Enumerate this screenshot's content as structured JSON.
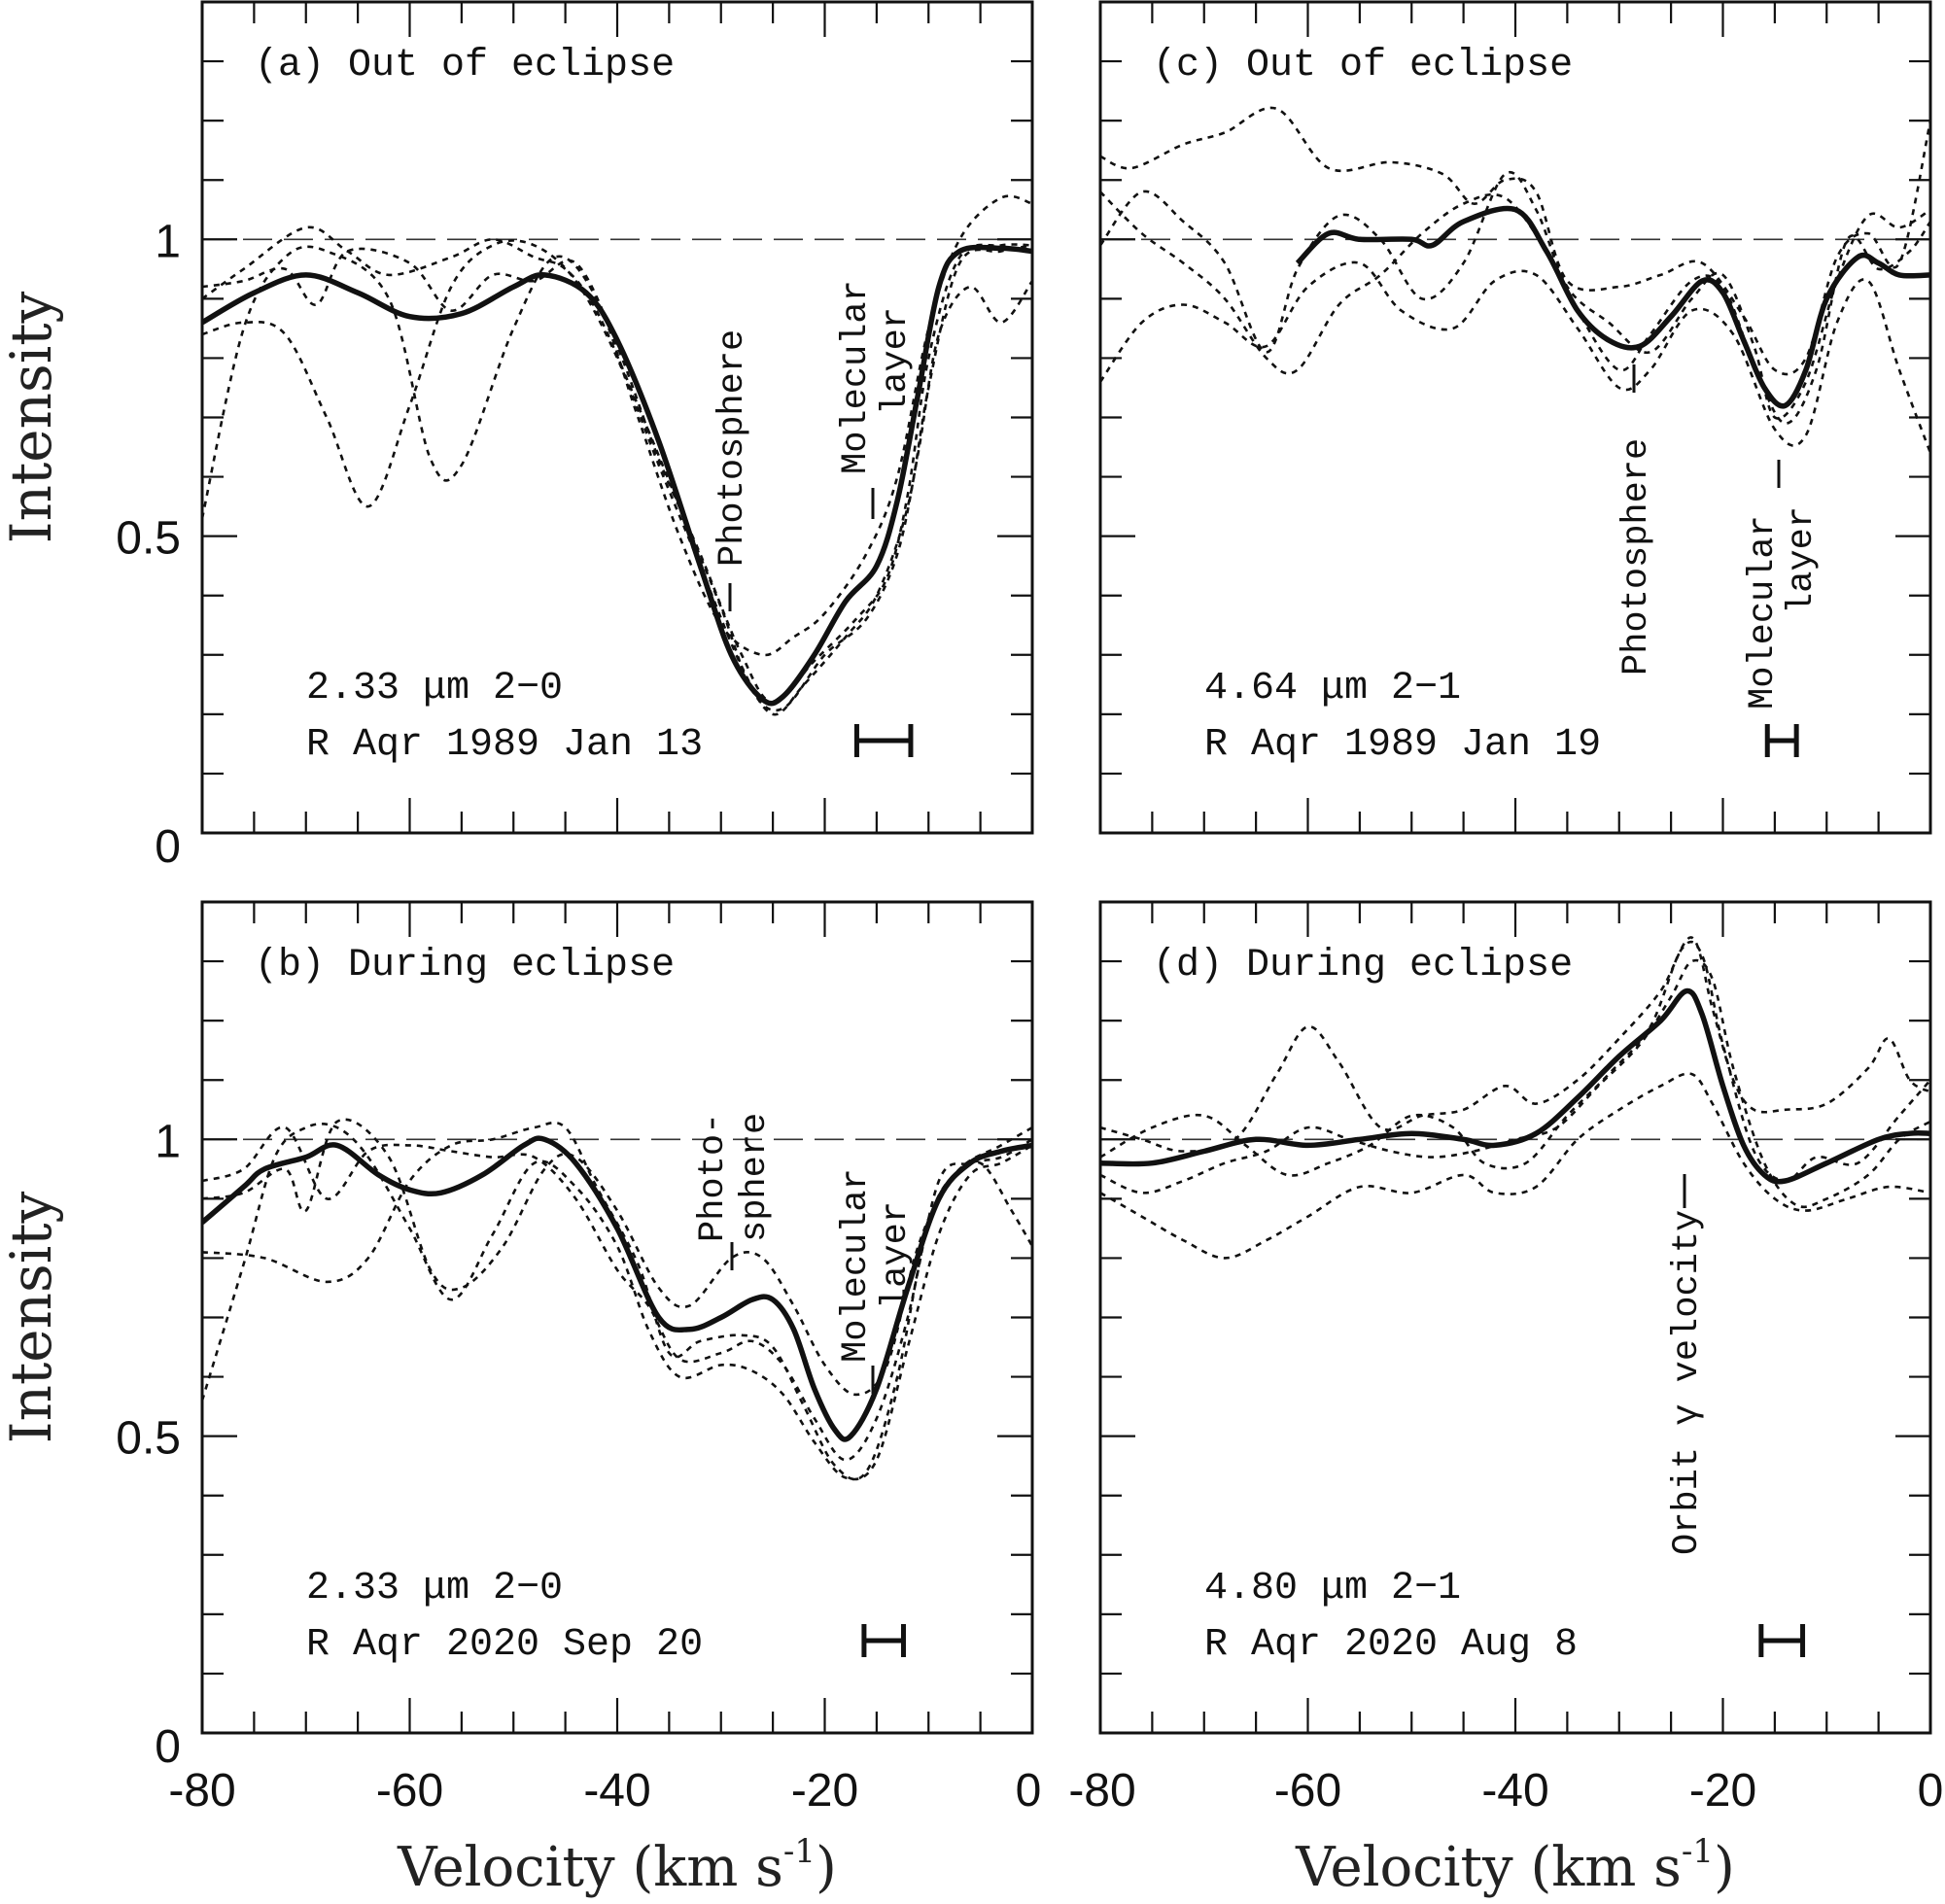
{
  "chart_data": [
    {
      "type": "line",
      "panel_label": "(a) Out of eclipse",
      "line_info": "2.33 μm 2−0",
      "observation": "R Aqr 1989 Jan 13",
      "annotations": [
        "Photosphere",
        "Molecular",
        "layer"
      ],
      "xlabel": "Velocity (km s⁻¹)",
      "ylabel": "Intensity",
      "xlim": [
        -80,
        0
      ],
      "ylim": [
        0,
        1.4
      ],
      "continuum_level": 1,
      "resolution_kms": 5.2,
      "mean_profile": {
        "x": [
          -80,
          -75,
          -70,
          -65,
          -60,
          -55,
          -50,
          -47,
          -43,
          -40,
          -36,
          -32,
          -29,
          -26,
          -24,
          -21,
          -18,
          -15,
          -13,
          -11,
          -9,
          -7,
          -3,
          0
        ],
        "y": [
          0.86,
          0.91,
          0.94,
          0.91,
          0.87,
          0.875,
          0.92,
          0.94,
          0.91,
          0.83,
          0.66,
          0.45,
          0.3,
          0.225,
          0.23,
          0.3,
          0.39,
          0.45,
          0.56,
          0.74,
          0.92,
          0.98,
          0.985,
          0.98
        ]
      },
      "individual_profiles": [
        {
          "x": [
            -80,
            -76,
            -72,
            -68,
            -62,
            -58,
            -55,
            -50,
            -46,
            -42,
            -38,
            -34,
            -30,
            -26,
            -23,
            -20,
            -16,
            -13,
            -10,
            -7,
            -3,
            0
          ],
          "y": [
            0.53,
            0.85,
            0.97,
            0.98,
            0.9,
            0.63,
            0.62,
            0.85,
            0.97,
            0.9,
            0.7,
            0.5,
            0.35,
            0.3,
            0.33,
            0.37,
            0.47,
            0.6,
            0.85,
            1.0,
            1.07,
            1.06
          ]
        },
        {
          "x": [
            -80,
            -76,
            -72,
            -68,
            -64,
            -60,
            -56,
            -52,
            -48,
            -44,
            -40,
            -36,
            -32,
            -28,
            -25,
            -22,
            -18,
            -15,
            -12,
            -10,
            -7,
            -3,
            0
          ],
          "y": [
            0.84,
            0.86,
            0.84,
            0.7,
            0.55,
            0.72,
            0.92,
            0.99,
            0.99,
            0.93,
            0.8,
            0.62,
            0.45,
            0.28,
            0.2,
            0.25,
            0.33,
            0.4,
            0.55,
            0.75,
            0.96,
            0.98,
            0.99
          ]
        },
        {
          "x": [
            -80,
            -76,
            -70,
            -66,
            -62,
            -56,
            -52,
            -48,
            -45,
            -42,
            -38,
            -34,
            -30,
            -27,
            -24,
            -20,
            -16,
            -13,
            -11,
            -9,
            -6,
            -3,
            0
          ],
          "y": [
            0.9,
            0.95,
            1.02,
            0.98,
            0.94,
            0.97,
            1.0,
            0.97,
            0.95,
            0.88,
            0.72,
            0.55,
            0.38,
            0.24,
            0.21,
            0.3,
            0.36,
            0.47,
            0.64,
            0.84,
            0.92,
            0.86,
            0.93
          ]
        },
        {
          "x": [
            -80,
            -76,
            -72,
            -69,
            -66,
            -60,
            -56,
            -52,
            -48,
            -44,
            -40,
            -36,
            -32,
            -28,
            -25,
            -21,
            -17,
            -14,
            -12,
            -10,
            -7,
            -3,
            0
          ],
          "y": [
            0.92,
            0.93,
            0.95,
            0.89,
            0.98,
            0.96,
            0.88,
            0.94,
            0.93,
            0.96,
            0.82,
            0.63,
            0.47,
            0.3,
            0.22,
            0.29,
            0.36,
            0.43,
            0.57,
            0.8,
            0.97,
            0.99,
            0.99
          ]
        }
      ]
    },
    {
      "type": "line",
      "panel_label": "(b) During eclipse",
      "line_info": "2.33 μm 2−0",
      "observation": "R Aqr 2020 Sep 20",
      "annotations": [
        "Photo-",
        "sphere",
        "Molecular",
        "layer"
      ],
      "xlabel": "Velocity (km s⁻¹)",
      "ylabel": "Intensity",
      "xlim": [
        -80,
        0
      ],
      "ylim": [
        0,
        1.4
      ],
      "continuum_level": 1,
      "resolution_kms": 3.8,
      "mean_profile": {
        "x": [
          -80,
          -76,
          -74,
          -70,
          -67,
          -63,
          -60,
          -57,
          -53,
          -49,
          -47,
          -44,
          -40,
          -36,
          -33,
          -30,
          -27,
          -25,
          -23,
          -21,
          -19,
          -17.5,
          -15,
          -12,
          -9,
          -6,
          -3,
          0
        ],
        "y": [
          0.86,
          0.92,
          0.95,
          0.97,
          0.99,
          0.94,
          0.915,
          0.91,
          0.94,
          0.99,
          1.0,
          0.96,
          0.85,
          0.7,
          0.68,
          0.7,
          0.73,
          0.73,
          0.68,
          0.58,
          0.51,
          0.5,
          0.58,
          0.75,
          0.9,
          0.96,
          0.98,
          0.99
        ]
      },
      "individual_profiles": [
        {
          "x": [
            -80,
            -76,
            -73,
            -70,
            -67,
            -64,
            -60,
            -56,
            -52,
            -48,
            -44,
            -40,
            -37,
            -34,
            -30,
            -27,
            -24,
            -21,
            -18,
            -15,
            -12,
            -9,
            -6,
            -3,
            0
          ],
          "y": [
            0.56,
            0.79,
            0.97,
            1.02,
            1.02,
            0.97,
            0.85,
            0.73,
            0.84,
            0.96,
            0.92,
            0.82,
            0.68,
            0.6,
            0.62,
            0.61,
            0.57,
            0.49,
            0.43,
            0.46,
            0.65,
            0.84,
            0.94,
            0.96,
            0.99
          ]
        },
        {
          "x": [
            -80,
            -76,
            -72,
            -70,
            -67,
            -62,
            -58,
            -55,
            -51,
            -47,
            -44,
            -40,
            -36,
            -33,
            -29,
            -26,
            -23,
            -20,
            -17,
            -14,
            -11,
            -8,
            -5,
            -2,
            0
          ],
          "y": [
            0.9,
            0.91,
            0.95,
            0.88,
            1.03,
            0.97,
            0.78,
            0.75,
            0.82,
            0.95,
            0.97,
            0.88,
            0.75,
            0.72,
            0.8,
            0.8,
            0.72,
            0.62,
            0.57,
            0.62,
            0.82,
            0.93,
            0.96,
            0.88,
            0.82
          ]
        },
        {
          "x": [
            -80,
            -74,
            -68,
            -64,
            -60,
            -56,
            -52,
            -48,
            -45,
            -42,
            -38,
            -35,
            -32,
            -28,
            -25,
            -22,
            -19,
            -16,
            -13,
            -10,
            -7,
            -3,
            0
          ],
          "y": [
            0.81,
            0.8,
            0.76,
            0.8,
            0.93,
            0.99,
            1.0,
            1.02,
            1.02,
            0.92,
            0.79,
            0.64,
            0.66,
            0.67,
            0.65,
            0.55,
            0.45,
            0.44,
            0.6,
            0.86,
            0.95,
            0.99,
            1.02
          ]
        },
        {
          "x": [
            -80,
            -76,
            -72,
            -68,
            -64,
            -60,
            -56,
            -52,
            -48,
            -44,
            -40,
            -37,
            -34,
            -30,
            -27,
            -24,
            -21,
            -18,
            -15,
            -12,
            -9,
            -6,
            -3,
            0
          ],
          "y": [
            0.93,
            0.95,
            1.02,
            0.9,
            0.98,
            0.99,
            0.98,
            0.97,
            0.97,
            0.9,
            0.78,
            0.72,
            0.63,
            0.64,
            0.66,
            0.62,
            0.53,
            0.46,
            0.53,
            0.7,
            0.93,
            0.96,
            0.97,
            1.0
          ]
        }
      ]
    },
    {
      "type": "line",
      "panel_label": "(c) Out of eclipse",
      "line_info": "4.64 μm 2−1",
      "observation": "R Aqr 1989 Jan 19",
      "annotations": [
        "Photosphere",
        "Molecular",
        "layer"
      ],
      "xlabel": "Velocity (km s⁻¹)",
      "ylabel": "",
      "xlim": [
        -80,
        0
      ],
      "ylim": [
        0,
        1.4
      ],
      "continuum_level": 1,
      "resolution_kms": 2.8,
      "mean_profile": {
        "x": [
          -61,
          -58,
          -55,
          -50,
          -48,
          -45,
          -40,
          -37,
          -34,
          -31,
          -28,
          -25,
          -22,
          -20,
          -18,
          -16,
          -14,
          -12,
          -10,
          -7,
          -5,
          -3,
          0
        ],
        "y": [
          0.96,
          1.01,
          1.0,
          1.0,
          0.99,
          1.03,
          1.05,
          0.98,
          0.88,
          0.83,
          0.82,
          0.87,
          0.93,
          0.91,
          0.83,
          0.75,
          0.72,
          0.78,
          0.9,
          0.97,
          0.96,
          0.94,
          0.94
        ]
      },
      "individual_profiles": [
        {
          "x": [
            -80,
            -77,
            -72,
            -68,
            -63,
            -58,
            -52,
            -47,
            -44,
            -41,
            -38,
            -35,
            -30,
            -26,
            -22,
            -18,
            -15,
            -12,
            -9,
            -6,
            -3,
            0
          ],
          "y": [
            1.14,
            1.12,
            1.16,
            1.18,
            1.22,
            1.12,
            1.13,
            1.11,
            1.06,
            1.1,
            1.08,
            0.93,
            0.92,
            0.94,
            0.96,
            0.87,
            0.78,
            0.8,
            0.97,
            1.01,
            0.96,
            1.2
          ]
        },
        {
          "x": [
            -80,
            -76,
            -72,
            -68,
            -64,
            -60,
            -55,
            -51,
            -46,
            -42,
            -38,
            -34,
            -30,
            -27,
            -23,
            -19,
            -15,
            -12,
            -9,
            -6,
            -3,
            0
          ],
          "y": [
            0.76,
            0.86,
            0.89,
            0.86,
            0.82,
            0.92,
            0.96,
            0.88,
            0.85,
            0.93,
            0.94,
            0.85,
            0.75,
            0.78,
            0.88,
            0.84,
            0.68,
            0.67,
            0.86,
            0.93,
            0.78,
            0.64
          ]
        },
        {
          "x": [
            -80,
            -76,
            -72,
            -68,
            -64,
            -61,
            -57,
            -53,
            -49,
            -45,
            -41,
            -38,
            -35,
            -31,
            -27,
            -23,
            -20,
            -17,
            -15,
            -12,
            -9,
            -6,
            -3,
            0
          ],
          "y": [
            0.99,
            1.08,
            1.03,
            0.96,
            0.81,
            0.95,
            1.04,
            1.0,
            0.9,
            0.96,
            1.11,
            1.05,
            0.92,
            0.86,
            0.81,
            0.9,
            0.94,
            0.82,
            0.7,
            0.76,
            0.93,
            1.04,
            1.02,
            1.05
          ]
        },
        {
          "x": [
            -80,
            -76,
            -72,
            -68,
            -64,
            -61,
            -57,
            -53,
            -49,
            -45,
            -41,
            -37,
            -34,
            -30,
            -27,
            -23,
            -20,
            -17,
            -14,
            -11,
            -8,
            -5,
            -2,
            0
          ],
          "y": [
            1.08,
            1.01,
            0.96,
            0.9,
            0.8,
            0.78,
            0.89,
            0.94,
            1.01,
            1.06,
            1.07,
            0.98,
            0.88,
            0.78,
            0.84,
            0.93,
            0.92,
            0.79,
            0.69,
            0.78,
            1.0,
            0.95,
            0.98,
            1.03
          ]
        }
      ]
    },
    {
      "type": "line",
      "panel_label": "(d) During eclipse",
      "line_info": "4.80 μm 2−1",
      "observation": "R Aqr 2020 Aug 8",
      "annotations": [
        "Orbit γ velocity"
      ],
      "xlabel": "Velocity (km s⁻¹)",
      "ylabel": "",
      "xlim": [
        -80,
        0
      ],
      "ylim": [
        0,
        1.4
      ],
      "continuum_level": 1,
      "resolution_kms": 4.0,
      "mean_profile": {
        "x": [
          -80,
          -75,
          -70,
          -65,
          -60,
          -55,
          -50,
          -45,
          -42,
          -38,
          -34,
          -30,
          -26,
          -23.5,
          -22,
          -20,
          -18,
          -16,
          -14,
          -10,
          -5,
          -2,
          0
        ],
        "y": [
          0.96,
          0.96,
          0.98,
          1.0,
          0.99,
          1.0,
          1.01,
          1.0,
          0.99,
          1.01,
          1.07,
          1.14,
          1.2,
          1.25,
          1.21,
          1.09,
          0.99,
          0.94,
          0.93,
          0.96,
          1.0,
          1.01,
          1.01
        ]
      },
      "individual_profiles": [
        {
          "x": [
            -80,
            -76,
            -72,
            -68,
            -64,
            -60,
            -55,
            -50,
            -45,
            -42,
            -38,
            -34,
            -30,
            -26,
            -23,
            -21,
            -18,
            -15,
            -12,
            -8,
            -4,
            0
          ],
          "y": [
            0.91,
            0.87,
            0.83,
            0.8,
            0.83,
            0.87,
            0.92,
            0.91,
            0.94,
            0.91,
            0.92,
            1.0,
            1.05,
            1.09,
            1.11,
            1.06,
            0.96,
            0.9,
            0.88,
            0.9,
            0.92,
            0.91
          ]
        },
        {
          "x": [
            -80,
            -76,
            -72,
            -67,
            -63,
            -60,
            -57,
            -53,
            -49,
            -45,
            -41,
            -38,
            -34,
            -30,
            -26,
            -23,
            -21,
            -19,
            -17,
            -14,
            -10,
            -6,
            -4,
            -2,
            0
          ],
          "y": [
            1.02,
            1.0,
            0.98,
            1.0,
            1.11,
            1.19,
            1.13,
            1.02,
            1.04,
            1.05,
            1.09,
            1.06,
            1.1,
            1.17,
            1.25,
            1.34,
            1.22,
            1.1,
            1.05,
            1.05,
            1.06,
            1.12,
            1.17,
            1.1,
            1.08
          ]
        },
        {
          "x": [
            -80,
            -75,
            -70,
            -66,
            -62,
            -58,
            -54,
            -50,
            -46,
            -43,
            -39,
            -35,
            -31,
            -27,
            -24,
            -22,
            -20,
            -17,
            -14,
            -11,
            -7,
            -3,
            0
          ],
          "y": [
            0.97,
            1.02,
            1.04,
            0.99,
            0.94,
            0.96,
            0.99,
            1.04,
            1.02,
            0.96,
            0.96,
            1.04,
            1.11,
            1.19,
            1.32,
            1.31,
            1.16,
            0.98,
            0.93,
            0.97,
            0.96,
            1.04,
            1.1
          ]
        },
        {
          "x": [
            -80,
            -76,
            -72,
            -68,
            -64,
            -60,
            -56,
            -52,
            -48,
            -44,
            -40,
            -36,
            -32,
            -28,
            -25,
            -23,
            -21,
            -19,
            -16,
            -13,
            -10,
            -6,
            -3,
            0
          ],
          "y": [
            0.94,
            0.91,
            0.93,
            0.96,
            0.98,
            1.02,
            1.0,
            0.98,
            0.97,
            0.98,
            1.0,
            1.02,
            1.09,
            1.16,
            1.24,
            1.3,
            1.27,
            1.12,
            0.96,
            0.89,
            0.9,
            0.94,
            1.0,
            1.03
          ]
        }
      ]
    }
  ],
  "x_tick_labels": [
    "-80",
    "-60",
    "-40",
    "-20",
    "0"
  ],
  "y_tick_labels": [
    "0",
    "0.5",
    "1"
  ],
  "axis_labels": {
    "y": "Intensity",
    "x": "Velocity (km s",
    "x_sup": "-1",
    "x_close": ")"
  },
  "colors": {
    "lines": "#111111",
    "background": "#ffffff"
  }
}
